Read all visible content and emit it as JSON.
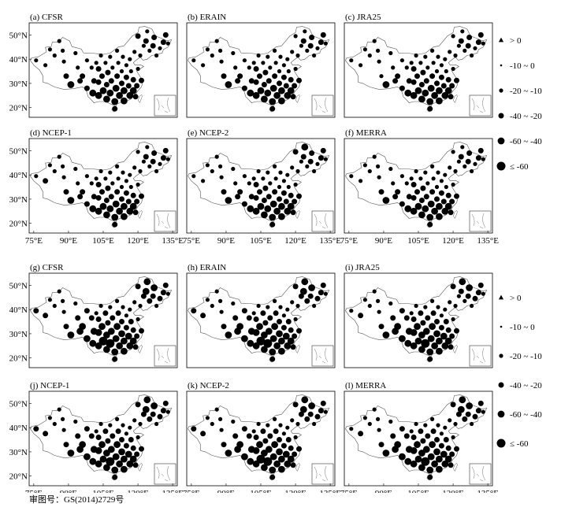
{
  "footer": {
    "approval_number": "审图号：GS(2014)2729号"
  },
  "axes": {
    "lat_ticks": [
      "50°N",
      "40°N",
      "30°N",
      "20°N"
    ],
    "lon_ticks": [
      "75°E",
      "90°E",
      "105°E",
      "120°E",
      "135°E"
    ],
    "lon_range": [
      73,
      137
    ],
    "lat_range": [
      16,
      55
    ]
  },
  "legends": [
    {
      "items": [
        {
          "label": "> 0",
          "symbol": "triangle"
        },
        {
          "label": "-10 ~ 0",
          "symbol": "circle",
          "size_rank": 0
        },
        {
          "label": "-20 ~ -10",
          "symbol": "circle",
          "size_rank": 1
        },
        {
          "label": "-40 ~ -20",
          "symbol": "circle",
          "size_rank": 2
        },
        {
          "label": "-60 ~ -40",
          "symbol": "circle",
          "size_rank": 3
        },
        {
          "label": "≤ -60",
          "symbol": "circle",
          "size_rank": 4
        }
      ]
    },
    {
      "items": [
        {
          "label": "> 0",
          "symbol": "triangle"
        },
        {
          "label": "-10 ~ 0",
          "symbol": "circle",
          "size_rank": 0
        },
        {
          "label": "-20 ~ -10",
          "symbol": "circle",
          "size_rank": 1
        },
        {
          "label": "-40 ~ -20",
          "symbol": "circle",
          "size_rank": 2
        },
        {
          "label": "-60 ~ -40",
          "symbol": "circle",
          "size_rank": 3
        },
        {
          "label": "≤ -60",
          "symbol": "circle",
          "size_rank": 4
        }
      ]
    }
  ],
  "panels": [
    {
      "label": "(a) CFSR",
      "group": 1
    },
    {
      "label": "(b) ERAIN",
      "group": 1
    },
    {
      "label": "(c) JRA25",
      "group": 1
    },
    {
      "label": "(d) NCEP-1",
      "group": 1
    },
    {
      "label": "(e) NCEP-2",
      "group": 1
    },
    {
      "label": "(f) MERRA",
      "group": 1
    },
    {
      "label": "(g) CFSR",
      "group": 2
    },
    {
      "label": "(h) ERAIN",
      "group": 2
    },
    {
      "label": "(i) JRA25",
      "group": 2
    },
    {
      "label": "(j) NCEP-1",
      "group": 2
    },
    {
      "label": "(k) NCEP-2",
      "group": 2
    },
    {
      "label": "(l) MERRA",
      "group": 2
    }
  ],
  "stations": [
    {
      "lon": 76,
      "lat": 39.5,
      "c": [
        1,
        1,
        1,
        1,
        1,
        1,
        2,
        2,
        1,
        2,
        2,
        1
      ]
    },
    {
      "lon": 80,
      "lat": 37.5,
      "c": [
        1,
        1,
        1,
        2,
        1,
        1,
        2,
        2,
        2,
        2,
        2,
        2
      ]
    },
    {
      "lon": 82,
      "lat": 44,
      "c": [
        1,
        1,
        1,
        1,
        1,
        1,
        1,
        1,
        1,
        1,
        1,
        1
      ]
    },
    {
      "lon": 84,
      "lat": 41.5,
      "c": [
        1,
        1,
        1,
        1,
        1,
        1,
        1,
        1,
        1,
        1,
        1,
        1
      ]
    },
    {
      "lon": 86,
      "lat": 47.5,
      "c": [
        1,
        1,
        1,
        1,
        1,
        1,
        1,
        1,
        1,
        1,
        1,
        1
      ]
    },
    {
      "lon": 87.5,
      "lat": 43.5,
      "c": [
        1,
        1,
        1,
        1,
        1,
        1,
        1,
        1,
        1,
        1,
        1,
        1
      ]
    },
    {
      "lon": 88,
      "lat": 39,
      "c": [
        1,
        1,
        1,
        1,
        1,
        1,
        1,
        1,
        1,
        1,
        1,
        1
      ]
    },
    {
      "lon": 89,
      "lat": 33,
      "c": [
        2,
        2,
        1,
        2,
        2,
        2,
        2,
        2,
        2,
        2,
        2,
        2
      ]
    },
    {
      "lon": 91,
      "lat": 29.5,
      "c": [
        3,
        3,
        3,
        3,
        3,
        3,
        3,
        3,
        3,
        3,
        3,
        3
      ]
    },
    {
      "lon": 93,
      "lat": 42.5,
      "c": [
        1,
        1,
        1,
        1,
        1,
        1,
        1,
        1,
        1,
        1,
        1,
        1
      ]
    },
    {
      "lon": 94,
      "lat": 36.5,
      "c": [
        1,
        1,
        1,
        1,
        1,
        1,
        2,
        2,
        2,
        2,
        2,
        2
      ]
    },
    {
      "lon": 95,
      "lat": 31,
      "c": [
        2,
        2,
        2,
        2,
        2,
        2,
        3,
        3,
        3,
        3,
        3,
        3
      ]
    },
    {
      "lon": 96,
      "lat": 33,
      "c": [
        2,
        2,
        2,
        2,
        2,
        2,
        3,
        3,
        3,
        3,
        3,
        3
      ]
    },
    {
      "lon": 98,
      "lat": 39.5,
      "c": [
        1,
        1,
        1,
        1,
        1,
        1,
        2,
        2,
        2,
        2,
        2,
        2
      ]
    },
    {
      "lon": 98,
      "lat": 28,
      "c": [
        2,
        2,
        2,
        2,
        2,
        2,
        3,
        3,
        3,
        3,
        3,
        3
      ]
    },
    {
      "lon": 100,
      "lat": 36.5,
      "c": [
        1,
        1,
        1,
        1,
        1,
        1,
        2,
        2,
        2,
        2,
        2,
        2
      ]
    },
    {
      "lon": 100.5,
      "lat": 26,
      "c": [
        3,
        3,
        3,
        3,
        3,
        3,
        3,
        3,
        3,
        3,
        3,
        3
      ]
    },
    {
      "lon": 101,
      "lat": 31,
      "c": [
        2,
        2,
        2,
        2,
        2,
        2,
        3,
        3,
        3,
        3,
        3,
        3
      ]
    },
    {
      "lon": 102,
      "lat": 38.5,
      "c": [
        1,
        1,
        1,
        1,
        1,
        1,
        1,
        1,
        1,
        1,
        1,
        1
      ]
    },
    {
      "lon": 103,
      "lat": 36,
      "c": [
        2,
        2,
        2,
        2,
        2,
        2,
        2,
        2,
        2,
        2,
        2,
        2
      ]
    },
    {
      "lon": 103,
      "lat": 30.5,
      "c": [
        2,
        2,
        2,
        2,
        2,
        2,
        3,
        3,
        3,
        3,
        3,
        3
      ]
    },
    {
      "lon": 103,
      "lat": 25,
      "c": [
        3,
        3,
        3,
        3,
        3,
        3,
        3,
        3,
        3,
        3,
        3,
        3
      ]
    },
    {
      "lon": 104,
      "lat": 41.5,
      "c": [
        1,
        1,
        1,
        1,
        1,
        1,
        1,
        1,
        1,
        1,
        1,
        1
      ]
    },
    {
      "lon": 104.5,
      "lat": 33,
      "c": [
        2,
        2,
        2,
        2,
        2,
        2,
        3,
        3,
        3,
        3,
        3,
        3
      ]
    },
    {
      "lon": 105,
      "lat": 27,
      "c": [
        3,
        3,
        3,
        3,
        3,
        3,
        4,
        4,
        3,
        3,
        4,
        3
      ]
    },
    {
      "lon": 106,
      "lat": 38.5,
      "c": [
        1,
        1,
        1,
        1,
        1,
        1,
        2,
        2,
        2,
        2,
        2,
        2
      ]
    },
    {
      "lon": 106.5,
      "lat": 29.5,
      "c": [
        2,
        2,
        2,
        2,
        2,
        2,
        3,
        3,
        3,
        3,
        3,
        3
      ]
    },
    {
      "lon": 106.5,
      "lat": 23.5,
      "c": [
        3,
        3,
        3,
        3,
        3,
        3,
        3,
        3,
        3,
        3,
        3,
        3
      ]
    },
    {
      "lon": 107,
      "lat": 34.5,
      "c": [
        2,
        2,
        2,
        2,
        2,
        2,
        2,
        2,
        2,
        2,
        2,
        2
      ]
    },
    {
      "lon": 108,
      "lat": 41,
      "c": [
        1,
        1,
        1,
        1,
        1,
        1,
        1,
        1,
        1,
        1,
        1,
        1
      ]
    },
    {
      "lon": 108,
      "lat": 26,
      "c": [
        3,
        3,
        3,
        3,
        3,
        3,
        4,
        4,
        4,
        4,
        4,
        4
      ]
    },
    {
      "lon": 108.5,
      "lat": 31,
      "c": [
        2,
        2,
        2,
        2,
        2,
        2,
        3,
        3,
        3,
        3,
        3,
        3
      ]
    },
    {
      "lon": 109,
      "lat": 36.5,
      "c": [
        1,
        1,
        1,
        1,
        1,
        1,
        2,
        2,
        2,
        2,
        2,
        2
      ]
    },
    {
      "lon": 110,
      "lat": 22.5,
      "c": [
        3,
        3,
        3,
        3,
        3,
        3,
        3,
        3,
        3,
        3,
        3,
        3
      ]
    },
    {
      "lon": 110,
      "lat": 19.5,
      "c": [
        2,
        2,
        2,
        2,
        2,
        2,
        2,
        2,
        2,
        2,
        2,
        2
      ]
    },
    {
      "lon": 110.5,
      "lat": 28,
      "c": [
        3,
        3,
        3,
        3,
        3,
        3,
        3,
        3,
        3,
        3,
        3,
        3
      ]
    },
    {
      "lon": 111,
      "lat": 43.5,
      "c": [
        1,
        1,
        1,
        1,
        1,
        1,
        1,
        1,
        1,
        1,
        1,
        1
      ]
    },
    {
      "lon": 111,
      "lat": 33,
      "c": [
        2,
        2,
        2,
        2,
        2,
        2,
        3,
        3,
        3,
        3,
        3,
        3
      ]
    },
    {
      "lon": 111.5,
      "lat": 38.5,
      "c": [
        1,
        1,
        1,
        1,
        1,
        1,
        2,
        2,
        2,
        2,
        2,
        2
      ]
    },
    {
      "lon": 112,
      "lat": 25,
      "c": [
        3,
        3,
        3,
        3,
        3,
        3,
        3,
        3,
        3,
        3,
        3,
        3
      ]
    },
    {
      "lon": 113,
      "lat": 30,
      "c": [
        2,
        2,
        2,
        2,
        2,
        2,
        3,
        3,
        3,
        3,
        3,
        3
      ]
    },
    {
      "lon": 113,
      "lat": 35,
      "c": [
        1,
        1,
        1,
        1,
        1,
        1,
        2,
        2,
        2,
        2,
        2,
        2
      ]
    },
    {
      "lon": 113.5,
      "lat": 41,
      "c": [
        1,
        1,
        1,
        1,
        1,
        1,
        1,
        1,
        1,
        1,
        1,
        1
      ]
    },
    {
      "lon": 114,
      "lat": 27,
      "c": [
        3,
        3,
        3,
        3,
        3,
        3,
        3,
        3,
        3,
        3,
        3,
        3
      ]
    },
    {
      "lon": 114,
      "lat": 22.8,
      "c": [
        3,
        3,
        3,
        3,
        3,
        3,
        3,
        3,
        3,
        3,
        3,
        3
      ]
    },
    {
      "lon": 115,
      "lat": 32.5,
      "c": [
        2,
        2,
        2,
        2,
        2,
        2,
        2,
        2,
        2,
        2,
        2,
        2
      ]
    },
    {
      "lon": 115,
      "lat": 37.5,
      "c": [
        1,
        1,
        1,
        1,
        1,
        1,
        1,
        1,
        1,
        1,
        1,
        1
      ]
    },
    {
      "lon": 116,
      "lat": 29,
      "c": [
        2,
        2,
        2,
        2,
        2,
        2,
        3,
        3,
        3,
        3,
        3,
        3
      ]
    },
    {
      "lon": 116.5,
      "lat": 40,
      "c": [
        1,
        1,
        1,
        1,
        1,
        1,
        1,
        1,
        1,
        1,
        1,
        1
      ]
    },
    {
      "lon": 116.5,
      "lat": 25,
      "c": [
        3,
        3,
        3,
        3,
        3,
        3,
        3,
        3,
        3,
        3,
        3,
        3
      ]
    },
    {
      "lon": 117,
      "lat": 35,
      "c": [
        1,
        1,
        1,
        1,
        1,
        1,
        2,
        2,
        2,
        2,
        2,
        2
      ]
    },
    {
      "lon": 118,
      "lat": 31.5,
      "c": [
        2,
        2,
        2,
        2,
        2,
        2,
        2,
        2,
        2,
        2,
        2,
        2
      ]
    },
    {
      "lon": 118,
      "lat": 27,
      "c": [
        3,
        3,
        3,
        3,
        3,
        3,
        3,
        3,
        3,
        3,
        3,
        3
      ]
    },
    {
      "lon": 118.5,
      "lat": 43,
      "c": [
        1,
        1,
        1,
        1,
        1,
        1,
        1,
        1,
        1,
        1,
        1,
        1
      ]
    },
    {
      "lon": 119,
      "lat": 24.5,
      "c": [
        2,
        2,
        2,
        2,
        2,
        2,
        2,
        2,
        2,
        2,
        2,
        2
      ]
    },
    {
      "lon": 119.5,
      "lat": 29,
      "c": [
        2,
        2,
        2,
        2,
        2,
        2,
        2,
        2,
        2,
        2,
        2,
        2
      ]
    },
    {
      "lon": 120,
      "lat": 36,
      "c": [
        1,
        1,
        1,
        1,
        1,
        1,
        1,
        1,
        1,
        1,
        1,
        1
      ]
    },
    {
      "lon": 120,
      "lat": 49.5,
      "c": [
        2,
        1,
        1,
        1,
        2,
        1,
        2,
        2,
        2,
        2,
        2,
        2
      ]
    },
    {
      "lon": 121,
      "lat": 41.5,
      "c": [
        1,
        1,
        1,
        1,
        1,
        1,
        1,
        1,
        1,
        1,
        1,
        1
      ]
    },
    {
      "lon": 121.5,
      "lat": 31.2,
      "c": [
        2,
        2,
        2,
        2,
        2,
        2,
        2,
        2,
        2,
        2,
        2,
        2
      ]
    },
    {
      "lon": 122.5,
      "lat": 45.5,
      "c": [
        1,
        1,
        1,
        1,
        1,
        1,
        2,
        2,
        1,
        2,
        2,
        2
      ]
    },
    {
      "lon": 123.5,
      "lat": 47.5,
      "c": [
        2,
        2,
        2,
        2,
        2,
        2,
        3,
        3,
        2,
        3,
        3,
        3
      ]
    },
    {
      "lon": 124,
      "lat": 51.5,
      "c": [
        1,
        1,
        1,
        1,
        3,
        1,
        3,
        3,
        3,
        3,
        3,
        3
      ]
    },
    {
      "lon": 125,
      "lat": 43.5,
      "c": [
        1,
        1,
        1,
        1,
        1,
        1,
        2,
        2,
        1,
        2,
        2,
        2
      ]
    },
    {
      "lon": 126.5,
      "lat": 45.5,
      "c": [
        2,
        2,
        2,
        2,
        2,
        2,
        2,
        2,
        2,
        2,
        2,
        2
      ]
    },
    {
      "lon": 127,
      "lat": 49,
      "c": [
        2,
        2,
        2,
        2,
        2,
        2,
        3,
        3,
        3,
        3,
        3,
        3
      ]
    },
    {
      "lon": 128,
      "lat": 41.5,
      "c": [
        1,
        1,
        1,
        1,
        1,
        1,
        1,
        1,
        1,
        1,
        1,
        1
      ]
    },
    {
      "lon": 129.5,
      "lat": 44.5,
      "c": [
        1,
        1,
        1,
        1,
        1,
        1,
        2,
        2,
        2,
        2,
        2,
        2
      ]
    },
    {
      "lon": 131,
      "lat": 47,
      "c": [
        2,
        2,
        2,
        2,
        2,
        2,
        2,
        2,
        2,
        2,
        2,
        2
      ]
    },
    {
      "lon": 132,
      "lat": 50,
      "c": [
        2,
        2,
        2,
        2,
        2,
        2,
        2,
        2,
        2,
        2,
        2,
        2
      ]
    },
    {
      "lon": 133,
      "lat": 46.5,
      "c": [
        1,
        1,
        1,
        1,
        1,
        1,
        1,
        1,
        1,
        1,
        1,
        1
      ]
    }
  ]
}
